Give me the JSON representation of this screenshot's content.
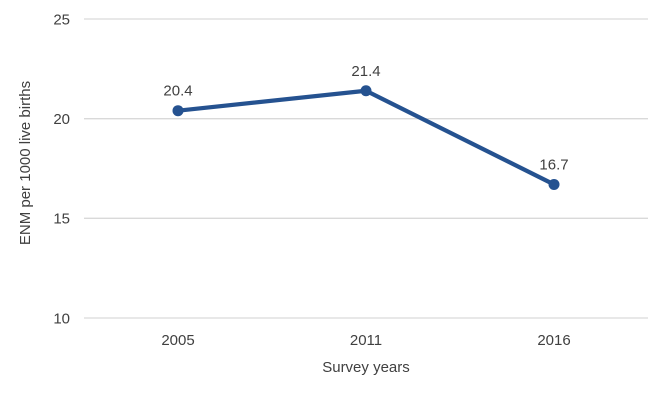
{
  "chart_data": {
    "type": "line",
    "categories": [
      "2005",
      "2011",
      "2016"
    ],
    "series": [
      {
        "name": "ENM",
        "values": [
          20.4,
          21.4,
          16.7
        ]
      }
    ],
    "data_labels": [
      "20.4",
      "21.4",
      "16.7"
    ],
    "title": "",
    "xlabel": "Survey years",
    "ylabel": "ENM per 1000 live births",
    "ylim": [
      10,
      25
    ],
    "yticks": [
      10,
      15,
      20,
      25
    ],
    "grid": true,
    "legend_position": "none",
    "colors": {
      "line": "#255290",
      "marker": "#255290",
      "gridline": "#D9D9D9",
      "text": "#404040",
      "background": "#FFFFFF"
    }
  }
}
